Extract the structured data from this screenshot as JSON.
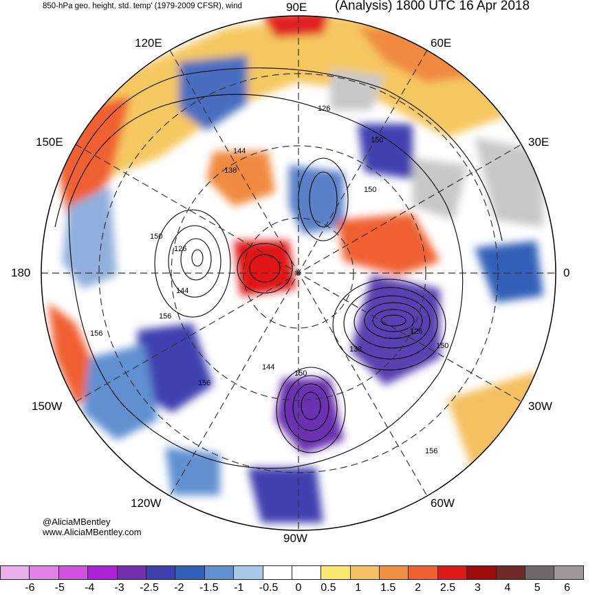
{
  "header": {
    "left_title": "850-hPa geo. height, std. temp' (1979-2009 CFSR), wind",
    "right_title": "(Analysis) 1800 UTC 16 Apr 2018"
  },
  "longitude_labels": {
    "lon_90e": "90E",
    "lon_120e": "120E",
    "lon_60e": "60E",
    "lon_150e": "150E",
    "lon_30e": "30E",
    "lon_180": "180",
    "lon_0": "0",
    "lon_150w": "150W",
    "lon_30w": "30W",
    "lon_120w": "120W",
    "lon_60w": "60W",
    "lon_90w": "90W"
  },
  "contour_labels": [
    "126",
    "144",
    "150",
    "156",
    "138",
    "150",
    "126",
    "144",
    "156",
    "138",
    "150",
    "150",
    "144",
    "156",
    "156",
    "150",
    "126"
  ],
  "credits": {
    "handle": "@AliciaMBentley",
    "website": "www.AliciaMBentley.com"
  },
  "colorbar": {
    "colors": [
      "#e8b0e8",
      "#e080e8",
      "#d050e0",
      "#b020d8",
      "#7030b0",
      "#4040b0",
      "#3060b8",
      "#6090d0",
      "#a8c8e8",
      "#ffffff",
      "#ffffff",
      "#f8e870",
      "#f4c060",
      "#f09040",
      "#f06030",
      "#e01818",
      "#a00c0c",
      "#702828",
      "#706868",
      "#a09898"
    ],
    "ticks": [
      "-6",
      "-5",
      "-4",
      "-3",
      "-2.5",
      "-2",
      "-1.5",
      "-1",
      "-0.5",
      "0",
      "0.5",
      "1",
      "1.5",
      "2",
      "2.5",
      "3",
      "4",
      "5",
      "6"
    ]
  },
  "theme": {
    "ocean_gray": "#c8c8c8"
  }
}
